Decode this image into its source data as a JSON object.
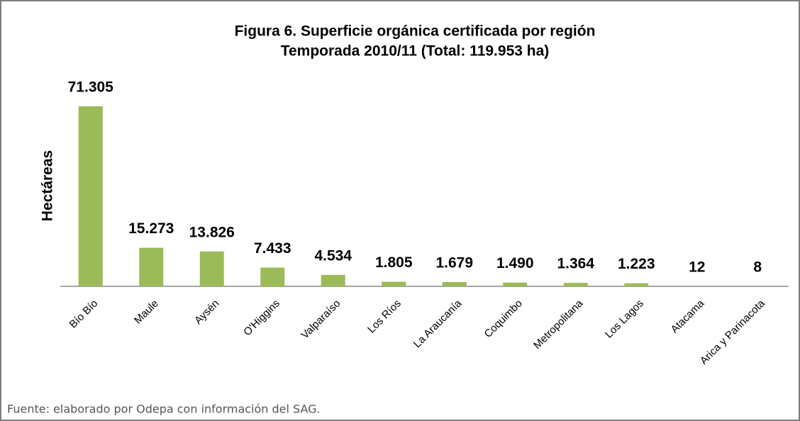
{
  "chart_data": {
    "type": "bar",
    "title": "Figura 6. Superficie orgánica certificada por región",
    "subtitle": "Temporada 2010/11 (Total: 119.953 ha)",
    "y_label": "Hectáreas",
    "categories": [
      "Bío Bío",
      "Maule",
      "Aysén",
      "O'Higgins",
      "Valparaíso",
      "Los Ríos",
      "La Araucanía",
      "Coquimbo",
      "Metropolitana",
      "Los Lagos",
      "Atacama",
      "Arica y Parinacota"
    ],
    "values": [
      71305,
      15273,
      13826,
      7433,
      4534,
      1805,
      1679,
      1490,
      1364,
      1223,
      12,
      8
    ],
    "value_labels": [
      "71.305",
      "15.273",
      "13.826",
      "7.433",
      "4.534",
      "1.805",
      "1.679",
      "1.490",
      "1.364",
      "1.223",
      "12",
      "8"
    ],
    "color": "#9bbb59"
  },
  "footer": "Fuente: elaborado por Odepa con información del SAG."
}
